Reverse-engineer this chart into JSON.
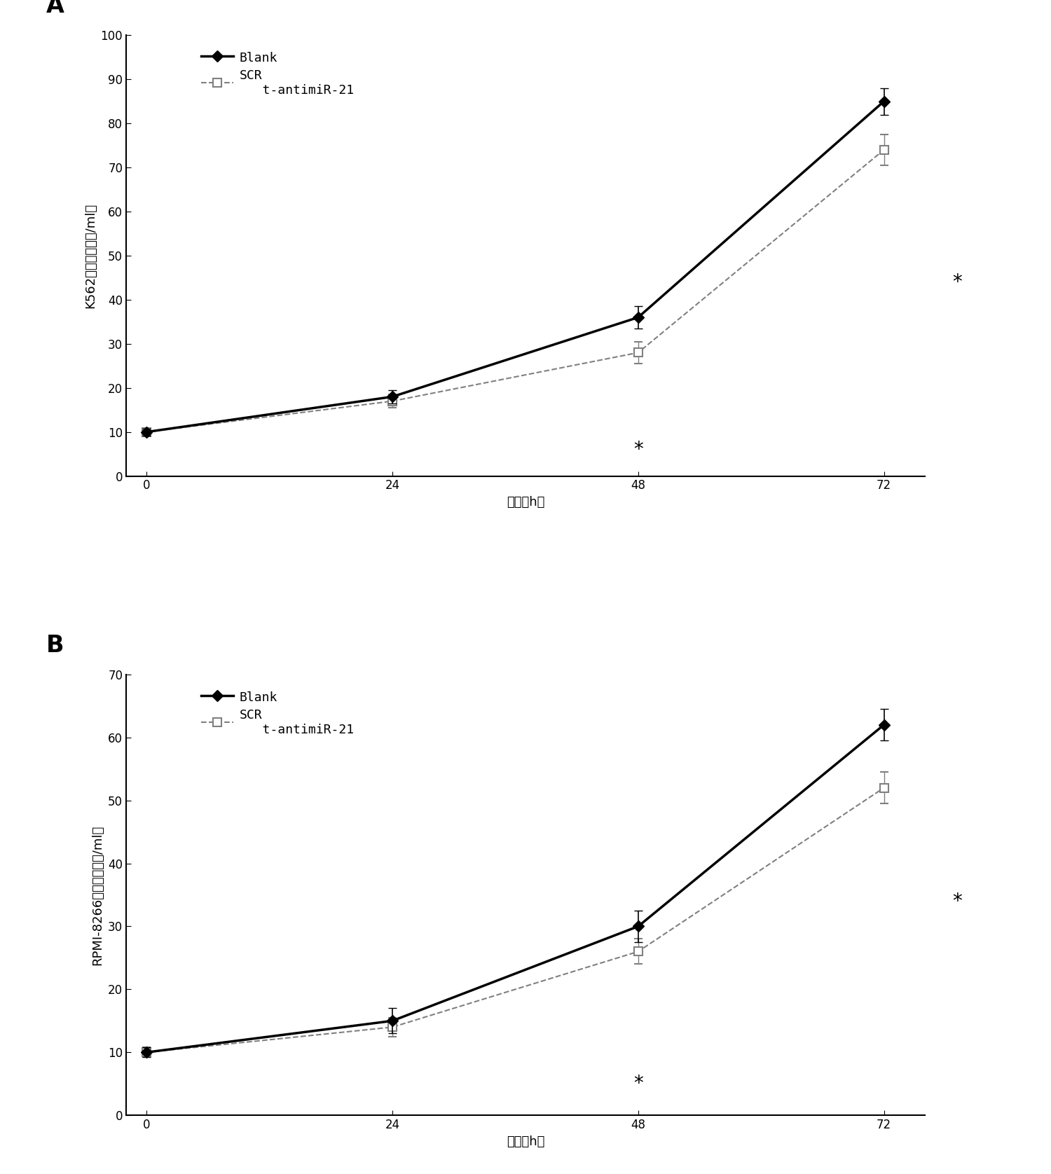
{
  "panel_A": {
    "title_label": "A",
    "ylabel": "K562活细胞数（万/ml）",
    "xlabel": "时间（h）",
    "xticks": [
      0,
      24,
      48,
      72
    ],
    "ylim": [
      0,
      100
    ],
    "yticks": [
      0,
      10,
      20,
      30,
      40,
      50,
      60,
      70,
      80,
      90,
      100
    ],
    "blank": {
      "x": [
        0,
        24,
        48,
        72
      ],
      "y": [
        10,
        18,
        36,
        85
      ],
      "yerr": [
        0.8,
        1.5,
        2.5,
        3.0
      ]
    },
    "scr": {
      "x": [
        0,
        24,
        48,
        72
      ],
      "y": [
        10,
        17,
        28,
        74
      ],
      "yerr": [
        0.8,
        1.5,
        2.5,
        3.5
      ]
    },
    "star_below_48_y": 6,
    "star_right_y": 44
  },
  "panel_B": {
    "title_label": "B",
    "ylabel": "RPMI-8266活细胞数（万/ml）",
    "xlabel": "时间（h）",
    "xticks": [
      0,
      24,
      48,
      72
    ],
    "ylim": [
      0,
      70
    ],
    "yticks": [
      0,
      10,
      20,
      30,
      40,
      50,
      60,
      70
    ],
    "blank": {
      "x": [
        0,
        24,
        48,
        72
      ],
      "y": [
        10,
        15,
        30,
        62
      ],
      "yerr": [
        0.8,
        2.0,
        2.5,
        2.5
      ]
    },
    "scr": {
      "x": [
        0,
        24,
        48,
        72
      ],
      "y": [
        10,
        14,
        26,
        52
      ],
      "yerr": [
        0.8,
        1.5,
        2.0,
        2.5
      ]
    },
    "star_below_48_y": 5,
    "star_right_y": 34
  },
  "legend_line1": "Blank",
  "legend_line2": "SCR",
  "legend_line3": "   t-antimiR-21",
  "blank_color": "#000000",
  "scr_color": "#808080",
  "blank_linewidth": 2.5,
  "scr_linewidth": 1.5,
  "marker_size": 8,
  "fontsize_ylabel": 13,
  "fontsize_xlabel": 13,
  "fontsize_tick": 12,
  "fontsize_legend": 13,
  "fontsize_panel_label": 24,
  "fontsize_star": 20,
  "background_color": "#ffffff"
}
